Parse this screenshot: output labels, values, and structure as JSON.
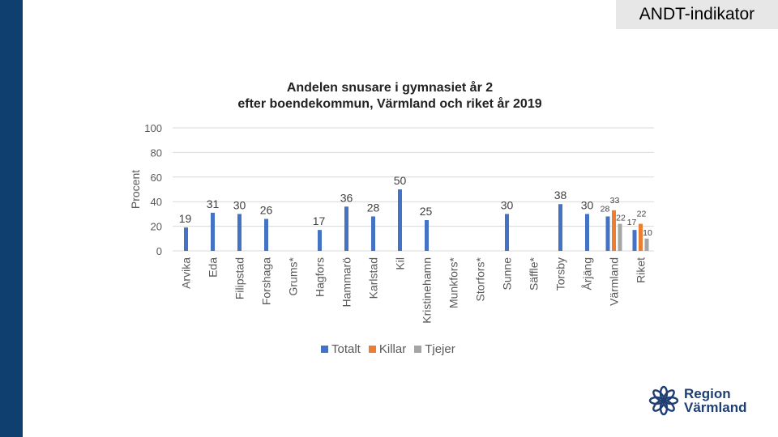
{
  "header": {
    "badge": "ANDT-indikator"
  },
  "colors": {
    "sidebar": "#0e3f6e",
    "totalt": "#4472c4",
    "killar": "#ed7d31",
    "tjejer": "#a5a5a5",
    "brand": "#1f3f73"
  },
  "logo": {
    "line1": "Region",
    "line2": "Värmland"
  },
  "chart_data": {
    "type": "bar",
    "title": [
      "Andelen snusare i gymnasiet år 2",
      "efter boendekommun, Värmland och riket år 2019"
    ],
    "ylabel": "Procent",
    "xlabel": "",
    "ylim": [
      0,
      100
    ],
    "yticks": [
      0,
      20,
      40,
      60,
      80,
      100
    ],
    "grid": true,
    "legend_position": "bottom",
    "categories": [
      "Arvika",
      "Eda",
      "Filipstad",
      "Forshaga",
      "Grums*",
      "Hagfors",
      "Hammarö",
      "Karlstad",
      "Kil",
      "Kristinehamn",
      "Munkfors*",
      "Storfors*",
      "Sunne",
      "Säffle*",
      "Torsby",
      "Årjäng",
      "Värmland",
      "Riket"
    ],
    "series": [
      {
        "name": "Totalt",
        "values": [
          19,
          31,
          30,
          26,
          null,
          17,
          36,
          28,
          50,
          25,
          null,
          null,
          30,
          null,
          38,
          30,
          28,
          17
        ]
      },
      {
        "name": "Killar",
        "values": [
          null,
          null,
          null,
          null,
          null,
          null,
          null,
          null,
          null,
          null,
          null,
          null,
          null,
          null,
          null,
          null,
          33,
          22
        ]
      },
      {
        "name": "Tjejer",
        "values": [
          null,
          null,
          null,
          null,
          null,
          null,
          null,
          null,
          null,
          null,
          null,
          null,
          null,
          null,
          null,
          null,
          22,
          10
        ]
      }
    ]
  }
}
